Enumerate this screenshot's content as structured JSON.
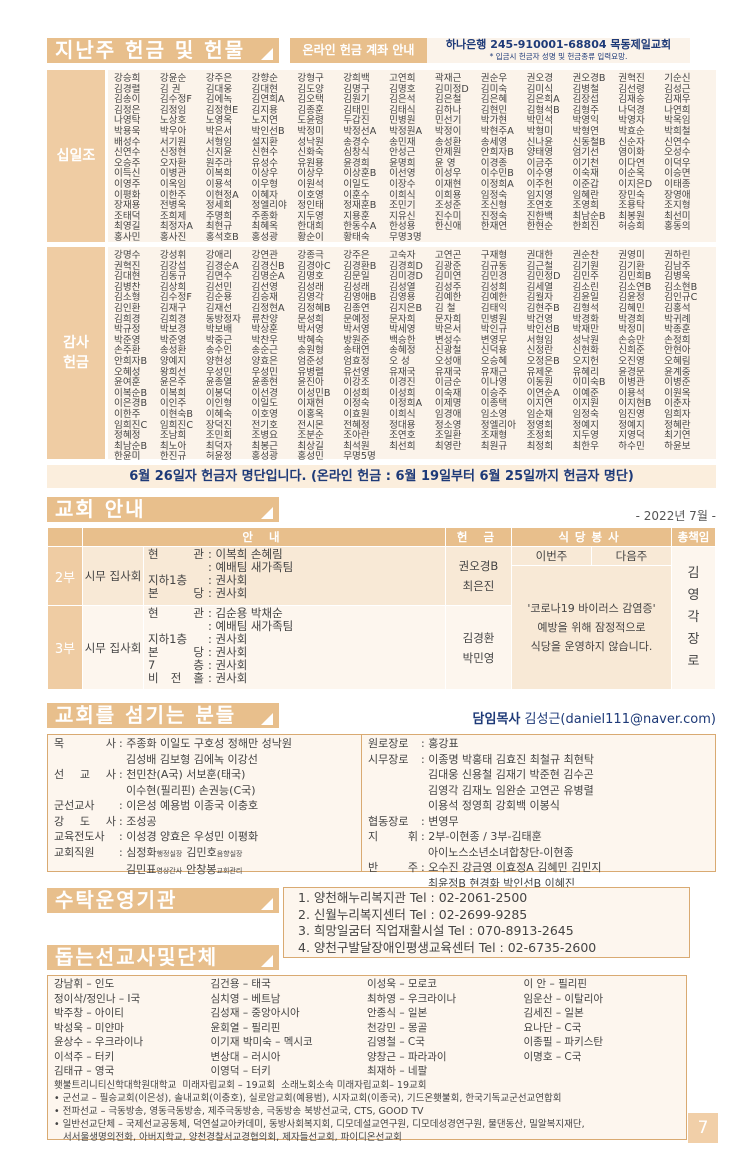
{
  "header": {
    "title": "지난주 헌금 및 헌물",
    "online_label": "온라인 헌금 계좌 안내",
    "account": "하나은행 245-910001-68804 목동제일교회",
    "account_note": "* 입금시 헌금자 성명 및 헌금종류 입력요망."
  },
  "tithe": {
    "label": "십일조",
    "rows": [
      [
        "강승희",
        "강윤순",
        "강주은",
        "강향순",
        "강형구",
        "강희백",
        "고연희",
        "곽재근",
        "권순우",
        "권오경",
        "권오경B",
        "권혁진",
        "기순신"
      ],
      [
        "김경렬",
        "김 권",
        "김대웅",
        "김대현",
        "김도양",
        "김명구",
        "김명호",
        "김미정D",
        "김미숙",
        "김미식",
        "김병철",
        "김선령",
        "김성근"
      ],
      [
        "김송이",
        "김수정F",
        "김에녹",
        "김연희A",
        "김오택",
        "김원기",
        "김은석",
        "김은철",
        "김은혜",
        "김은희A",
        "김장섭",
        "김재승",
        "김재우"
      ],
      [
        "김정은",
        "김정임",
        "김정현E",
        "김지용",
        "김종훈",
        "김태민",
        "김태식",
        "김하나",
        "김현민",
        "김형석B",
        "김형주",
        "나덕경",
        "나연희"
      ],
      [
        "나영탁",
        "노상호",
        "노영옥",
        "노지연",
        "도윤령",
        "두갑진",
        "민병원",
        "민선기",
        "박가현",
        "박민석",
        "박영익",
        "박영자",
        "박옥임"
      ],
      [
        "박용욱",
        "박우아",
        "박은서",
        "박인선B",
        "박정미",
        "박정선A",
        "박정원A",
        "박정이",
        "박현주A",
        "박형미",
        "박형연",
        "박효순",
        "박희철"
      ],
      [
        "배성수",
        "서기원",
        "서형임",
        "설지환",
        "성낙원",
        "송경수",
        "송민재",
        "송성환",
        "송세영",
        "신나윤",
        "신동철B",
        "신순자",
        "신연수"
      ],
      [
        "신연수",
        "신정현",
        "신지윤",
        "신현수",
        "신화숙",
        "심창식",
        "안성근",
        "안제원",
        "안희자B",
        "양태영",
        "엄기선",
        "염이화",
        "오성수"
      ],
      [
        "오승주",
        "오자환",
        "원주라",
        "유성수",
        "유원용",
        "윤경희",
        "윤명희",
        "윤 영",
        "이경종",
        "이금주",
        "이기천",
        "이다연",
        "이덕우"
      ],
      [
        "이득신",
        "이병관",
        "이복희",
        "이상우",
        "이상우",
        "이상훈B",
        "이선영",
        "이성우",
        "이수민B",
        "이수영",
        "이숙재",
        "이순옥",
        "이승면"
      ],
      [
        "이영주",
        "이옥임",
        "이용석",
        "이우형",
        "이원석",
        "이일도",
        "이장수",
        "이재현",
        "이정희A",
        "이주헌",
        "이준갑",
        "이지은D",
        "이태종"
      ],
      [
        "이평화",
        "이한주",
        "이현정A",
        "이혜자",
        "이호영",
        "이훈수",
        "이희식",
        "이희용",
        "임정숙",
        "임지영",
        "임혜란",
        "장민숙",
        "장영애"
      ],
      [
        "장재용",
        "전병옥",
        "정세희",
        "정엘리야",
        "정인태",
        "정재훈B",
        "조민기",
        "조성준",
        "조신형",
        "조연호",
        "조영희",
        "조용탁",
        "조지형"
      ],
      [
        "조태덕",
        "조희제",
        "주명희",
        "주종화",
        "지두영",
        "지용훈",
        "지유신",
        "진수미",
        "진정숙",
        "진한백",
        "최남순B",
        "최봉원",
        "최선미"
      ],
      [
        "최영길",
        "최정자A",
        "최현규",
        "최혜옥",
        "한대희",
        "한동수A",
        "한성용",
        "한신애",
        "한재연",
        "한현순",
        "한희진",
        "허승희",
        "홍동의"
      ],
      [
        "홍사민",
        "홍사진",
        "홍석호B",
        "홍성광",
        "황순이",
        "황태숙",
        "무명3명"
      ]
    ]
  },
  "thanks": {
    "label": "감사 헌금",
    "rows": [
      [
        "강명수",
        "강성휘",
        "강애리",
        "강연관",
        "강종극",
        "강주은",
        "고숙자",
        "고연곤",
        "구재형",
        "권대한",
        "권순찬",
        "권영미",
        "권하린"
      ],
      [
        "권혁진",
        "김강섭",
        "김경순A",
        "김경신B",
        "김경아C",
        "김경환B",
        "김경희D",
        "김광준",
        "김규동",
        "김근철",
        "김기원",
        "김기환",
        "김남주"
      ],
      [
        "김대현",
        "김동규",
        "김면수",
        "김명순A",
        "김명호",
        "김문일",
        "김미경D",
        "김미연",
        "김민경",
        "김민정D",
        "김민주",
        "김민희B",
        "김병욱"
      ],
      [
        "김병찬",
        "김상희",
        "김선민",
        "김선영",
        "김성래",
        "김성래",
        "김성열",
        "김성주",
        "김성희",
        "김세열",
        "김소린",
        "김소연B",
        "김소현B"
      ],
      [
        "김소형",
        "김수정F",
        "김순용",
        "김승재",
        "김영각",
        "김영애B",
        "김영용",
        "김예한",
        "김예한",
        "김월자",
        "김윤일",
        "김윤정",
        "김인규C"
      ],
      [
        "김인환",
        "김재구",
        "김재선",
        "김정현A",
        "김정혜B",
        "김종연",
        "김지은B",
        "김 철",
        "김태익",
        "김현주B",
        "김형석",
        "김혜민",
        "김홍석"
      ],
      [
        "김희경",
        "김희경",
        "동방정자",
        "류찬양",
        "문성희",
        "문예정",
        "문자희",
        "문자희",
        "민병원",
        "박건영",
        "박경화",
        "박경희",
        "박귀례"
      ],
      [
        "박규정",
        "박보경",
        "박보배",
        "박상훈",
        "박서영",
        "박서영",
        "박세영",
        "박은서",
        "박인규",
        "박인선B",
        "박재만",
        "박정미",
        "박종훈"
      ],
      [
        "박준영",
        "박준영",
        "박중근",
        "박찬우",
        "박혜숙",
        "방원준",
        "백승한",
        "변성수",
        "변영무",
        "서형임",
        "성낙원",
        "손승만",
        "손정희"
      ],
      [
        "손주환",
        "송성환",
        "송수인",
        "송순근",
        "송원형",
        "송태연",
        "송혜정",
        "신광철",
        "신덕용",
        "신정란",
        "신현화",
        "신희준",
        "안현아"
      ],
      [
        "안희자B",
        "양예지",
        "양현성",
        "양효은",
        "엄준성",
        "엄효정",
        "오 성",
        "오성애",
        "오승혜",
        "오정은B",
        "오지헌",
        "오진영",
        "오혜림"
      ],
      [
        "오혜성",
        "왕희선",
        "우성민",
        "우성민",
        "유병렬",
        "유선영",
        "유재국",
        "유재국",
        "유재근",
        "유제운",
        "유혜리",
        "윤경문",
        "윤계중"
      ],
      [
        "윤여훈",
        "윤은주",
        "윤종열",
        "윤종현",
        "윤진아",
        "이강조",
        "이경진",
        "이금순",
        "이나영",
        "이동원",
        "이미숙B",
        "이병관",
        "이병준"
      ],
      [
        "이복순B",
        "이복희",
        "이봉덕",
        "이선경",
        "이성민B",
        "이성희",
        "이성희",
        "이숙재",
        "이승주",
        "이연순A",
        "이예준",
        "이용석",
        "이원옥"
      ],
      [
        "이은경B",
        "이인주",
        "이인형",
        "이일도",
        "이재현",
        "이정숙",
        "이정희A",
        "이제명",
        "이종택",
        "이지연",
        "이지원",
        "이지현B",
        "이춘자"
      ],
      [
        "이한주",
        "이현숙B",
        "이혜숙",
        "이호영",
        "이홍옥",
        "이효원",
        "이희식",
        "임경애",
        "임소영",
        "임순채",
        "임정숙",
        "임진영",
        "임희자"
      ],
      [
        "임희진C",
        "임희진C",
        "장덕진",
        "전기호",
        "전시몬",
        "전혜정",
        "정대용",
        "정소영",
        "정엘리아",
        "정영희",
        "정예지",
        "정예지",
        "정혜란"
      ],
      [
        "정혜정",
        "조남희",
        "조민희",
        "조병요",
        "조분순",
        "조아란",
        "조연호",
        "조일환",
        "조재형",
        "조정희",
        "지두영",
        "지영덕",
        "최기연"
      ],
      [
        "최남순B",
        "최노아",
        "최덕자",
        "최봉근",
        "최상길",
        "최석원",
        "최선희",
        "최영란",
        "최원규",
        "최정희",
        "최한우",
        "하수민",
        "하윤보"
      ],
      [
        "한윤미",
        "한진규",
        "허윤정",
        "홍성광",
        "홍성민",
        "무명5명"
      ]
    ]
  },
  "notice": "6월 26일자 헌금자 명단입니다. (온라인 헌금 : 6월 19일부터 6월 25일까지 헌금자 명단)",
  "info": {
    "title": "교회 안내",
    "date": "- 2022년 7월 -",
    "cols": {
      "guide": "안 내",
      "offering": "헌 금",
      "cafeteria": "식당봉사",
      "chief": "총책임"
    },
    "this_week": "이번주",
    "next_week": "다음주",
    "services": [
      {
        "name": "2부",
        "group": "시무 집사회",
        "lines": [
          [
            "현 관",
            "이복희 손혜림"
          ],
          [
            "",
            "예배팀 새가족팀"
          ],
          [
            "지하1층",
            "권사회"
          ],
          [
            "본 당",
            "권사회"
          ]
        ],
        "offering": [
          "권오경B",
          "최은진"
        ]
      },
      {
        "name": "3부",
        "group": "시무 집사회",
        "lines": [
          [
            "현 관",
            "김순용 박채순"
          ],
          [
            "",
            "예배팀 새가족팀"
          ],
          [
            "지하1층",
            "권사회"
          ],
          [
            "본 당",
            "권사회"
          ],
          [
            "7 층",
            "권사회"
          ],
          [
            "비 전 홀",
            "권사회"
          ]
        ],
        "offering": [
          "김경환",
          "박민영"
        ]
      }
    ],
    "cafeteria_note": [
      "'코로나19 바이러스 감염증'",
      "예방을 위해 잠정적으로",
      "식당을 운영하지 않습니다."
    ],
    "chief": "김영각장로"
  },
  "servants": {
    "title": "교회를 섬기는 분들",
    "pastor_label": "담임목사",
    "pastor": "김성근(daniel111@naver.com)",
    "left": [
      [
        "목 사",
        "주종화 이일도 구호성 정해만 성낙원"
      ],
      [
        "",
        "김성배 김보형 김에녹 이강선"
      ],
      [
        "선 교 사",
        "천민찬(A국) 서보훈(태국)"
      ],
      [
        "",
        "이수현(필리핀) 손권능(C국)"
      ],
      [
        "군선교사",
        "이은성 예용범 이종국 이충호"
      ],
      [
        "강 도 사",
        "조성공"
      ],
      [
        "교육전도사",
        "이성경 양효은 우성민 이평화"
      ]
    ],
    "staff_label": "교회직원",
    "staff": [
      [
        [
          "심정화",
          "행정실장"
        ],
        [
          "김민호",
          "음향실장"
        ]
      ],
      [
        [
          "김민표",
          "영상간사"
        ],
        [
          "안창봉",
          "교회관리"
        ]
      ]
    ],
    "right": [
      [
        "원로장로",
        "홍강표"
      ],
      [
        "시무장로",
        "이종명 박홍태 김효진 최철규 최현탁"
      ],
      [
        "",
        "김대웅 신용철 김재기 박준현 김수곤"
      ],
      [
        "",
        "김영각 김재노 임완순 고연곤 유병렬"
      ],
      [
        "",
        "이용석 정영희 강회백 이봉식"
      ],
      [
        "협동장로",
        "변영무"
      ],
      [
        "지 휘",
        "2부-이현종 / 3부-김태훈"
      ],
      [
        "",
        "아이노스소년소녀합창단-이현종"
      ],
      [
        "반 주",
        "오수진 강금영 이효정A 김혜민 김민지"
      ],
      [
        "",
        "최윤정B 현경화 박인선B 이혜진"
      ]
    ]
  },
  "facilities": {
    "title": "수탁운영기관",
    "items": [
      "1. 양천해누리복지관  Tel : 02-2061-2500",
      "2. 신월누리복지센터  Tel : 02-2699-9285",
      "3. 희망일굼터 직업재활시설  Tel : 070-8913-2645",
      "4. 양천구발달장애인평생교육센터  Tel : 02-6735-2600"
    ]
  },
  "missions": {
    "title": "돕는선교사및단체",
    "items": [
      "강남휘 – 인도",
      "김건용 – 태국",
      "이성욱 – 모로코",
      "이 안 – 필리핀",
      "정이삭/정인나 – I국",
      "심치영 – 베트남",
      "최하영 – 우크라이나",
      "임운산 – 이탈리아",
      "박주창 – 아이티",
      "김성재 – 중앙아시아",
      "안종식 – 일본",
      "김세진 – 일본",
      "박성욱 – 미얀마",
      "윤회열 – 필리핀",
      "천강민 – 몽골",
      "요나단 – C국",
      "윤상수 – 우크라이나",
      "이기재 박미숙 – 멕시코",
      "김영철 – C국",
      "이종필 – 파키스탄",
      "이석주 – 터키",
      "변상대 – 러시아",
      "양창근 – 파라과이",
      "이명호 – C국",
      "김태규 – 영국",
      "이영덕 – 터키",
      "최재하 – 네팔",
      ""
    ],
    "lines": [
      "횃불트리니티신학대학원대학교  미래자립교회 – 19교회  소래노회소속 미래자립교회– 19교회",
      "• 군선교 – 필승교회(이은성), 솔내교회(이충호), 실로암교회(예용범), 시자교회(이종국), 기드온횃불회, 한국기독교군선교연합회",
      "• 전파선교 – 극동방송, 영동극동방송, 제주극동방송, 극동방송 북방선교국, CTS, GOOD TV",
      "• 일반선교단체 – 국제선교공동체, 덕연설교아카데미, 동방사회복지회, 디모데설교연구원, 디모데성경연구원, 물댄동산, 밀알복지재단,",
      "   서서울생명의전화, 아버지학교, 양천경찰서교경협의회, 제자들선교회, 파이디온선교회"
    ]
  },
  "page_number": "7",
  "colors": {
    "accent": "#e8bf8c",
    "light_bg": "#fbf3ea",
    "notice_text": "#1e3a78"
  }
}
